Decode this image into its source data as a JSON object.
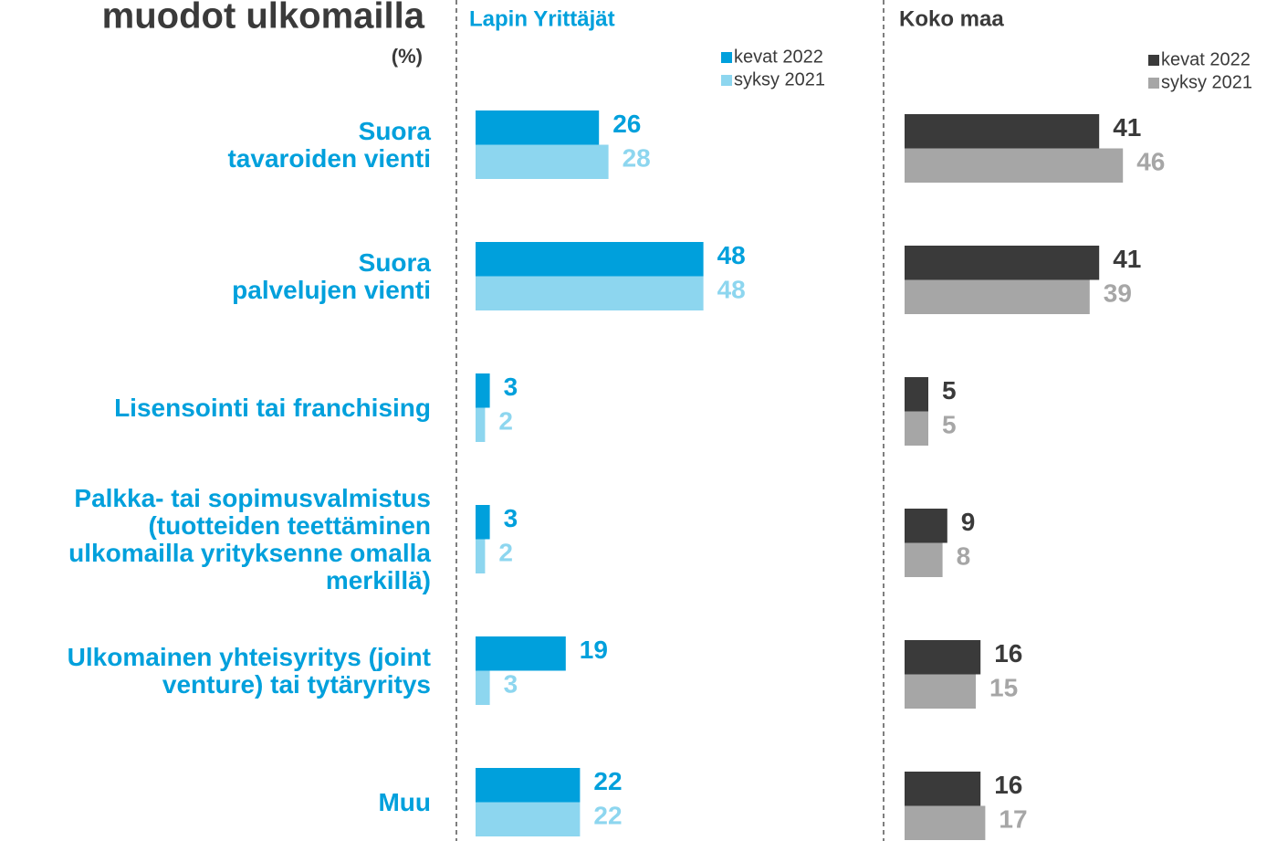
{
  "title": "muodot ulkomailla",
  "unit": "(%)",
  "chart_data": [
    {
      "type": "hbar",
      "title": "Lapin Yrittäjät",
      "categories": [
        "Suora\ntavaroiden vienti",
        "Suora\npalvelujen vienti",
        "Lisensointi tai franchising",
        "Palkka- tai sopimusvalmistus\n(tuotteiden teettäminen\nulkomailla yrityksenne omalla\nmerkillä)",
        "Ulkomainen yhteisyritys (joint\nventure) tai tytäryritys",
        "Muu"
      ],
      "xlim": [
        0,
        50
      ],
      "series": [
        {
          "name": "kevat 2022",
          "color": "#00a0dc",
          "values": [
            26,
            48,
            3,
            3,
            19,
            22
          ]
        },
        {
          "name": "syksy 2021",
          "color": "#8dd6ef",
          "values": [
            28,
            48,
            2,
            2,
            3,
            22
          ]
        }
      ]
    },
    {
      "type": "hbar",
      "title": "Koko maa",
      "xlim": [
        0,
        50
      ],
      "series": [
        {
          "name": "kevat 2022",
          "color": "#3a3a3a",
          "values": [
            41,
            41,
            5,
            9,
            16,
            16
          ]
        },
        {
          "name": "syksy 2021",
          "color": "#a6a6a6",
          "values": [
            46,
            39,
            5,
            8,
            15,
            17
          ]
        }
      ]
    }
  ]
}
